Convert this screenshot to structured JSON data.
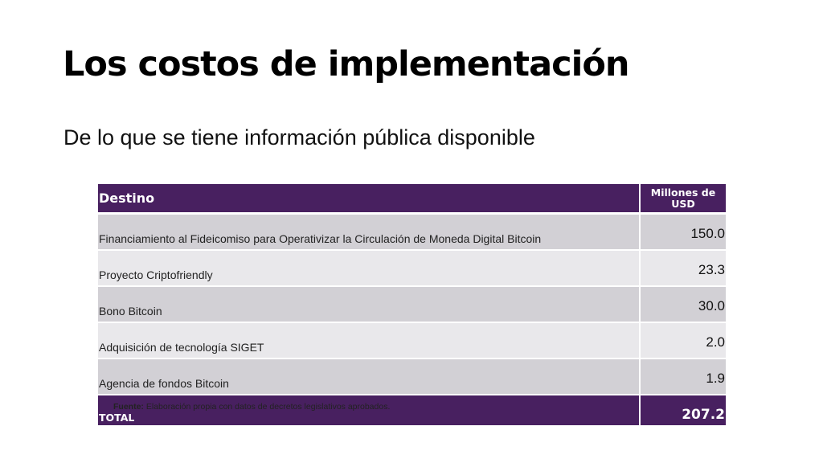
{
  "slide": {
    "title": "Los costos de implementación",
    "subtitle": "De lo que se tiene información pública disponible"
  },
  "table": {
    "headers": {
      "destination": "Destino",
      "amount": "Millones de USD"
    },
    "rows": [
      {
        "destination": "Financiamiento al Fideicomiso para Operativizar la Circulación de Moneda Digital Bitcoin",
        "amount": "150.0"
      },
      {
        "destination": "Proyecto Criptofriendly",
        "amount": "23.3"
      },
      {
        "destination": "Bono Bitcoin",
        "amount": "30.0"
      },
      {
        "destination": "Adquisición de tecnología SIGET",
        "amount": "2.0"
      },
      {
        "destination": "Agencia de fondos Bitcoin",
        "amount": "1.9"
      }
    ],
    "total": {
      "label": "TOTAL",
      "amount": "207.2"
    }
  },
  "source": {
    "label": "Fuente:",
    "text": "Elaboración propia con datos de decretos legislativos aprobados."
  },
  "colors": {
    "header_purple": "#482060",
    "row_dark": "#d2d0d5",
    "row_light": "#e9e8eb"
  }
}
